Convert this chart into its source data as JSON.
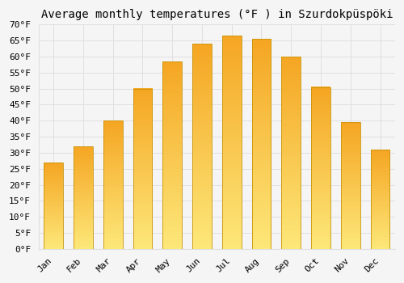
{
  "title": "Average monthly temperatures (°F ) in Szurdokpüspöki",
  "months": [
    "Jan",
    "Feb",
    "Mar",
    "Apr",
    "May",
    "Jun",
    "Jul",
    "Aug",
    "Sep",
    "Oct",
    "Nov",
    "Dec"
  ],
  "values": [
    27,
    32,
    40,
    50,
    58.5,
    64,
    66.5,
    65.5,
    60,
    50.5,
    39.5,
    31
  ],
  "bar_color_top": "#F5A623",
  "bar_color_mid": "#FDBE2A",
  "bar_color_bottom": "#FDE87A",
  "bar_edge_color": "#B8860B",
  "background_color": "#f5f5f5",
  "grid_color": "#e0e0e0",
  "ylim": [
    0,
    70
  ],
  "ytick_step": 5,
  "title_fontsize": 10,
  "tick_fontsize": 8,
  "font_family": "monospace"
}
